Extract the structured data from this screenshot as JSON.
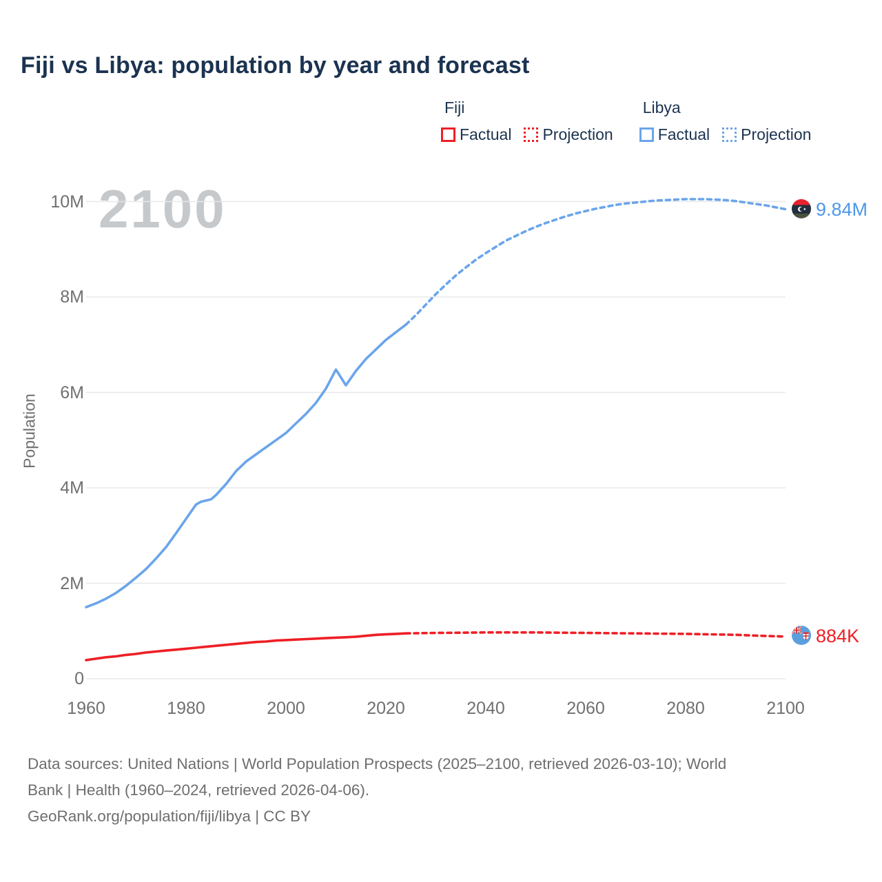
{
  "title": "Fiji vs Libya: population by year and forecast",
  "watermark": "2100",
  "colors": {
    "fiji": "#ee1f25",
    "libya": "#6aa5ea",
    "libya_label": "#4e97e8",
    "title_text": "#1b3350",
    "axis_text": "#6f7072",
    "gridline": "#e7e8e9",
    "watermark": "#c6c9cc"
  },
  "legend": {
    "groups": [
      {
        "label": "Fiji",
        "color": "#ee1f25",
        "items": [
          {
            "label": "Factual",
            "style": "solid"
          },
          {
            "label": "Projection",
            "style": "dotted"
          }
        ]
      },
      {
        "label": "Libya",
        "color": "#6aa5ea",
        "items": [
          {
            "label": "Factual",
            "style": "solid"
          },
          {
            "label": "Projection",
            "style": "dotted"
          }
        ]
      }
    ]
  },
  "axes": {
    "y_label": "Population",
    "y_ticks": [
      {
        "value": 0,
        "label": "0"
      },
      {
        "value": 2,
        "label": "2M"
      },
      {
        "value": 4,
        "label": "4M"
      },
      {
        "value": 6,
        "label": "6M"
      },
      {
        "value": 8,
        "label": "8M"
      },
      {
        "value": 10,
        "label": "10M"
      }
    ],
    "x_ticks": [
      1960,
      1980,
      2000,
      2020,
      2040,
      2060,
      2080,
      2100
    ],
    "x_range": [
      1960,
      2100
    ],
    "y_range_millions": [
      0,
      10
    ]
  },
  "end_labels": {
    "libya": {
      "text": "9.84M",
      "icon": "libya-flag-icon"
    },
    "fiji": {
      "text": "884K",
      "icon": "fiji-flag-icon"
    }
  },
  "chart_data": {
    "type": "line",
    "title": "Fiji vs Libya: population by year and forecast",
    "xlabel": "",
    "ylabel": "Population",
    "x_range": [
      1960,
      2100
    ],
    "ylim_millions": [
      0,
      10
    ],
    "grid": true,
    "legend_position": "top-right",
    "series": [
      {
        "name": "libya",
        "display_name": "Libya",
        "color": "#6aa5ea",
        "end_value_label": "9.84M",
        "factual": [
          [
            1960,
            1.5
          ],
          [
            1962,
            1.58
          ],
          [
            1964,
            1.68
          ],
          [
            1966,
            1.8
          ],
          [
            1968,
            1.95
          ],
          [
            1970,
            2.12
          ],
          [
            1972,
            2.3
          ],
          [
            1974,
            2.52
          ],
          [
            1976,
            2.76
          ],
          [
            1978,
            3.05
          ],
          [
            1980,
            3.35
          ],
          [
            1982,
            3.65
          ],
          [
            1983,
            3.71
          ],
          [
            1985,
            3.76
          ],
          [
            1986,
            3.85
          ],
          [
            1988,
            4.08
          ],
          [
            1990,
            4.35
          ],
          [
            1992,
            4.55
          ],
          [
            1994,
            4.7
          ],
          [
            1996,
            4.85
          ],
          [
            1998,
            5.0
          ],
          [
            2000,
            5.15
          ],
          [
            2002,
            5.35
          ],
          [
            2004,
            5.55
          ],
          [
            2006,
            5.78
          ],
          [
            2008,
            6.08
          ],
          [
            2010,
            6.48
          ],
          [
            2012,
            6.15
          ],
          [
            2014,
            6.45
          ],
          [
            2016,
            6.7
          ],
          [
            2018,
            6.9
          ],
          [
            2020,
            7.1
          ],
          [
            2022,
            7.26
          ],
          [
            2024,
            7.42
          ]
        ],
        "projection": [
          [
            2024,
            7.42
          ],
          [
            2026,
            7.62
          ],
          [
            2028,
            7.84
          ],
          [
            2030,
            8.06
          ],
          [
            2032,
            8.26
          ],
          [
            2034,
            8.45
          ],
          [
            2036,
            8.62
          ],
          [
            2038,
            8.78
          ],
          [
            2040,
            8.92
          ],
          [
            2042,
            9.05
          ],
          [
            2044,
            9.18
          ],
          [
            2046,
            9.28
          ],
          [
            2048,
            9.38
          ],
          [
            2050,
            9.47
          ],
          [
            2052,
            9.55
          ],
          [
            2054,
            9.62
          ],
          [
            2056,
            9.69
          ],
          [
            2058,
            9.75
          ],
          [
            2060,
            9.8
          ],
          [
            2062,
            9.85
          ],
          [
            2064,
            9.89
          ],
          [
            2066,
            9.93
          ],
          [
            2068,
            9.96
          ],
          [
            2070,
            9.98
          ],
          [
            2072,
            10.0
          ],
          [
            2074,
            10.02
          ],
          [
            2076,
            10.03
          ],
          [
            2078,
            10.04
          ],
          [
            2080,
            10.05
          ],
          [
            2084,
            10.05
          ],
          [
            2086,
            10.04
          ],
          [
            2088,
            10.03
          ],
          [
            2090,
            10.01
          ],
          [
            2092,
            9.98
          ],
          [
            2094,
            9.95
          ],
          [
            2096,
            9.92
          ],
          [
            2098,
            9.88
          ],
          [
            2100,
            9.84
          ]
        ]
      },
      {
        "name": "fiji",
        "display_name": "Fiji",
        "color": "#ee1f25",
        "end_value_label": "884K",
        "factual": [
          [
            1960,
            0.39
          ],
          [
            1962,
            0.42
          ],
          [
            1964,
            0.45
          ],
          [
            1966,
            0.47
          ],
          [
            1968,
            0.5
          ],
          [
            1970,
            0.52
          ],
          [
            1972,
            0.55
          ],
          [
            1974,
            0.57
          ],
          [
            1976,
            0.59
          ],
          [
            1978,
            0.61
          ],
          [
            1980,
            0.63
          ],
          [
            1982,
            0.65
          ],
          [
            1984,
            0.67
          ],
          [
            1986,
            0.69
          ],
          [
            1988,
            0.71
          ],
          [
            1990,
            0.73
          ],
          [
            1992,
            0.75
          ],
          [
            1994,
            0.77
          ],
          [
            1996,
            0.78
          ],
          [
            1998,
            0.8
          ],
          [
            2000,
            0.81
          ],
          [
            2002,
            0.82
          ],
          [
            2004,
            0.83
          ],
          [
            2006,
            0.84
          ],
          [
            2008,
            0.85
          ],
          [
            2010,
            0.86
          ],
          [
            2012,
            0.87
          ],
          [
            2014,
            0.88
          ],
          [
            2016,
            0.9
          ],
          [
            2018,
            0.92
          ],
          [
            2020,
            0.93
          ],
          [
            2022,
            0.94
          ],
          [
            2024,
            0.95
          ]
        ],
        "projection": [
          [
            2024,
            0.95
          ],
          [
            2030,
            0.96
          ],
          [
            2035,
            0.965
          ],
          [
            2040,
            0.97
          ],
          [
            2045,
            0.97
          ],
          [
            2050,
            0.97
          ],
          [
            2055,
            0.965
          ],
          [
            2060,
            0.96
          ],
          [
            2065,
            0.955
          ],
          [
            2070,
            0.95
          ],
          [
            2075,
            0.945
          ],
          [
            2080,
            0.94
          ],
          [
            2085,
            0.93
          ],
          [
            2090,
            0.92
          ],
          [
            2095,
            0.9
          ],
          [
            2100,
            0.884
          ]
        ]
      }
    ]
  },
  "footer": {
    "lines": [
      "Data sources: United Nations | World Population Prospects (2025–2100, retrieved 2026-03-10); World",
      "Bank | Health (1960–2024, retrieved 2026-04-06).",
      "GeoRank.org/population/fiji/libya | CC BY"
    ]
  }
}
